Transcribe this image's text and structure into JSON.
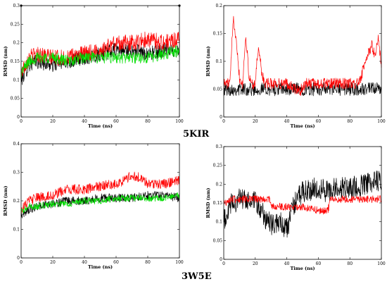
{
  "figure_labels": [
    "5KIR",
    "3W5E"
  ],
  "chart_data": [
    {
      "type": "line",
      "xlabel": "Time (ns)",
      "ylabel": "RMSD (nm)",
      "xlim": [
        0,
        100
      ],
      "ylim": [
        0,
        0.3
      ],
      "xticks": [
        0,
        20,
        40,
        60,
        80,
        100
      ],
      "yticks": [
        0,
        0.05,
        0.1,
        0.15,
        0.2,
        0.25,
        0.3
      ],
      "xtick_labels": [
        "0",
        "20",
        "40",
        "60",
        "80",
        "100"
      ],
      "ytick_labels": [
        "0",
        "0.05",
        "0.1",
        "0.15",
        "0.2",
        "0.25",
        "0.3"
      ],
      "grid": false,
      "series": [
        {
          "color": "#000000",
          "x": [
            0,
            5,
            10,
            20,
            30,
            40,
            50,
            60,
            70,
            80,
            90,
            100
          ],
          "values": [
            0.1,
            0.14,
            0.15,
            0.14,
            0.15,
            0.16,
            0.17,
            0.18,
            0.18,
            0.17,
            0.18,
            0.18
          ],
          "noise": 0.02
        },
        {
          "color": "#ff0000",
          "x": [
            0,
            5,
            10,
            20,
            30,
            40,
            50,
            60,
            70,
            80,
            90,
            100
          ],
          "values": [
            0.12,
            0.16,
            0.17,
            0.16,
            0.16,
            0.17,
            0.18,
            0.2,
            0.2,
            0.21,
            0.2,
            0.21
          ],
          "noise": 0.022
        },
        {
          "color": "#00dd00",
          "x": [
            0,
            5,
            10,
            20,
            30,
            40,
            50,
            60,
            70,
            80,
            90,
            100
          ],
          "values": [
            0.12,
            0.15,
            0.16,
            0.16,
            0.15,
            0.16,
            0.16,
            0.16,
            0.16,
            0.16,
            0.17,
            0.18
          ],
          "noise": 0.016
        }
      ]
    },
    {
      "type": "line",
      "xlabel": "Time (ns)",
      "ylabel": "RMSD (nm)",
      "xlim": [
        0,
        100
      ],
      "ylim": [
        0,
        0.2
      ],
      "xticks": [
        0,
        20,
        40,
        60,
        80,
        100
      ],
      "yticks": [
        0,
        0.05,
        0.1,
        0.15,
        0.2
      ],
      "xtick_labels": [
        "0",
        "20",
        "40",
        "60",
        "80",
        "100"
      ],
      "ytick_labels": [
        "0",
        "0.05",
        "0.1",
        "0.15",
        "0.2"
      ],
      "grid": false,
      "series": [
        {
          "color": "#000000",
          "x": [
            0,
            10,
            20,
            30,
            40,
            50,
            60,
            70,
            80,
            90,
            100
          ],
          "values": [
            0.05,
            0.05,
            0.05,
            0.05,
            0.05,
            0.05,
            0.05,
            0.05,
            0.05,
            0.05,
            0.05
          ],
          "noise": 0.012
        },
        {
          "color": "#ff0000",
          "x": [
            0,
            2,
            4,
            6,
            8,
            10,
            12,
            14,
            16,
            18,
            20,
            22,
            24,
            26,
            30,
            40,
            48,
            52,
            60,
            70,
            80,
            86,
            90,
            94,
            96,
            98,
            100
          ],
          "values": [
            0.06,
            0.06,
            0.06,
            0.18,
            0.14,
            0.07,
            0.06,
            0.15,
            0.07,
            0.06,
            0.06,
            0.13,
            0.08,
            0.06,
            0.06,
            0.06,
            0.045,
            0.06,
            0.06,
            0.06,
            0.06,
            0.06,
            0.1,
            0.13,
            0.11,
            0.14,
            0.09
          ],
          "noise": 0.01
        }
      ]
    },
    {
      "type": "line",
      "xlabel": "Time (ns)",
      "ylabel": "RMSD (nm)",
      "xlim": [
        0,
        100
      ],
      "ylim": [
        0,
        0.4
      ],
      "xticks": [
        0,
        20,
        40,
        60,
        80,
        100
      ],
      "yticks": [
        0,
        0.1,
        0.2,
        0.3,
        0.4
      ],
      "xtick_labels": [
        "0",
        "20",
        "40",
        "60",
        "80",
        "100"
      ],
      "ytick_labels": [
        "0",
        "0.1",
        "0.2",
        "0.3",
        "0.4"
      ],
      "grid": false,
      "series": [
        {
          "color": "#000000",
          "x": [
            0,
            5,
            10,
            20,
            30,
            40,
            50,
            60,
            70,
            80,
            90,
            100
          ],
          "values": [
            0.15,
            0.17,
            0.18,
            0.19,
            0.2,
            0.2,
            0.21,
            0.21,
            0.21,
            0.22,
            0.22,
            0.21
          ],
          "noise": 0.015
        },
        {
          "color": "#ff0000",
          "x": [
            0,
            5,
            10,
            20,
            30,
            40,
            50,
            60,
            65,
            70,
            75,
            80,
            90,
            100
          ],
          "values": [
            0.17,
            0.2,
            0.21,
            0.22,
            0.24,
            0.24,
            0.25,
            0.26,
            0.27,
            0.29,
            0.28,
            0.26,
            0.26,
            0.27
          ],
          "noise": 0.018
        },
        {
          "color": "#00dd00",
          "x": [
            0,
            5,
            10,
            20,
            30,
            40,
            50,
            60,
            70,
            80,
            90,
            100
          ],
          "values": [
            0.16,
            0.18,
            0.18,
            0.19,
            0.19,
            0.2,
            0.2,
            0.21,
            0.21,
            0.21,
            0.21,
            0.22
          ],
          "noise": 0.012
        }
      ]
    },
    {
      "type": "line",
      "xlabel": "Time (ns)",
      "ylabel": "RMSD (nm)",
      "xlim": [
        0,
        100
      ],
      "ylim": [
        0,
        0.3
      ],
      "xticks": [
        0,
        20,
        40,
        60,
        80,
        100
      ],
      "yticks": [
        0,
        0.05,
        0.1,
        0.15,
        0.2,
        0.25,
        0.3
      ],
      "xtick_labels": [
        "0",
        "20",
        "40",
        "60",
        "80",
        "100"
      ],
      "ytick_labels": [
        "0",
        "0.05",
        "0.1",
        "0.15",
        "0.2",
        "0.25",
        "0.3"
      ],
      "grid": false,
      "series": [
        {
          "color": "#000000",
          "x": [
            0,
            5,
            10,
            20,
            25,
            30,
            35,
            40,
            45,
            50,
            60,
            66,
            70,
            80,
            90,
            100
          ],
          "values": [
            0.1,
            0.15,
            0.16,
            0.15,
            0.12,
            0.09,
            0.1,
            0.08,
            0.15,
            0.18,
            0.19,
            0.18,
            0.19,
            0.19,
            0.2,
            0.21
          ],
          "noise": 0.03
        },
        {
          "color": "#ff0000",
          "x": [
            0,
            5,
            10,
            20,
            29,
            31,
            40,
            50,
            60,
            66,
            68,
            80,
            90,
            100
          ],
          "values": [
            0.15,
            0.16,
            0.16,
            0.16,
            0.16,
            0.14,
            0.14,
            0.14,
            0.13,
            0.13,
            0.16,
            0.16,
            0.16,
            0.16
          ],
          "noise": 0.01
        }
      ]
    }
  ]
}
